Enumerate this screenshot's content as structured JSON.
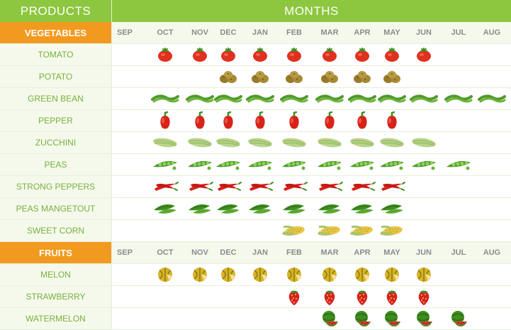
{
  "header": {
    "products_label": "PRODUCTS",
    "months_label": "MONTHS"
  },
  "months": [
    "SEP",
    "OCT",
    "NOV",
    "DEC",
    "JAN",
    "FEB",
    "MAR",
    "APR",
    "MAY",
    "JUN",
    "JUL",
    "AUG"
  ],
  "sections": [
    {
      "label": "VEGETABLES",
      "items": [
        {
          "name": "TOMATO",
          "icon": "tomato-icon",
          "months": [
            "OCT",
            "NOV",
            "DEC",
            "JAN",
            "FEB",
            "MAR",
            "APR",
            "MAY",
            "JUN"
          ]
        },
        {
          "name": "POTATO",
          "icon": "potato-icon",
          "months": [
            "DEC",
            "JAN",
            "FEB",
            "MAR",
            "APR",
            "MAY"
          ]
        },
        {
          "name": "GREEN BEAN",
          "icon": "green-bean-icon",
          "months": [
            "OCT",
            "NOV",
            "DEC",
            "JAN",
            "FEB",
            "MAR",
            "APR",
            "MAY",
            "JUN",
            "JUL",
            "AUG"
          ]
        },
        {
          "name": "PEPPER",
          "icon": "pepper-icon",
          "months": [
            "OCT",
            "NOV",
            "DEC",
            "JAN",
            "FEB",
            "MAR",
            "APR",
            "MAY"
          ]
        },
        {
          "name": "ZUCCHINI",
          "icon": "zucchini-icon",
          "months": [
            "OCT",
            "NOV",
            "DEC",
            "JAN",
            "FEB",
            "MAR",
            "APR",
            "MAY",
            "JUN"
          ]
        },
        {
          "name": "PEAS",
          "icon": "peas-icon",
          "months": [
            "OCT",
            "NOV",
            "DEC",
            "JAN",
            "FEB",
            "MAR",
            "APR",
            "MAY",
            "JUN",
            "JUL"
          ]
        },
        {
          "name": "STRONG PEPPERS",
          "icon": "chili-pepper-icon",
          "months": [
            "OCT",
            "NOV",
            "DEC",
            "JAN",
            "FEB",
            "MAR",
            "APR",
            "MAY"
          ]
        },
        {
          "name": "PEAS MANGETOUT",
          "icon": "mangetout-icon",
          "months": [
            "OCT",
            "NOV",
            "DEC",
            "JAN",
            "FEB",
            "MAR",
            "APR",
            "MAY"
          ]
        },
        {
          "name": "SWEET CORN",
          "icon": "corn-icon",
          "months": [
            "FEB",
            "MAR",
            "APR",
            "MAY"
          ]
        }
      ]
    },
    {
      "label": "FRUITS",
      "items": [
        {
          "name": "MELON",
          "icon": "melon-icon",
          "months": [
            "OCT",
            "NOV",
            "DEC",
            "JAN",
            "FEB",
            "MAR",
            "APR",
            "MAY",
            "JUN"
          ]
        },
        {
          "name": "STRAWBERRY",
          "icon": "strawberry-icon",
          "months": [
            "FEB",
            "MAR",
            "APR",
            "MAY",
            "JUN"
          ]
        },
        {
          "name": "WATERMELON",
          "icon": "watermelon-icon",
          "months": [
            "MAR",
            "APR",
            "MAY",
            "JUN",
            "JUL"
          ]
        }
      ]
    }
  ],
  "colors": {
    "green": "#8dc63f",
    "orange": "#f29a1f",
    "pale": "#f4f9ec",
    "label_green": "#7ab03a",
    "month_gray": "#8c8c8c"
  }
}
